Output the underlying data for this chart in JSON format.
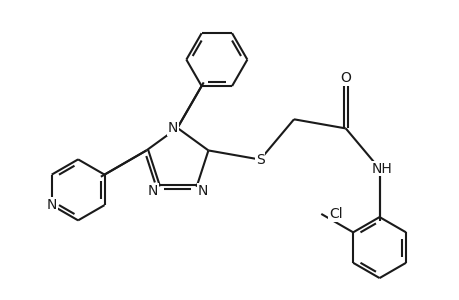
{
  "bg_color": "#ffffff",
  "line_color": "#1a1a1a",
  "line_width": 1.5,
  "font_size": 10,
  "figsize": [
    4.6,
    3.0
  ],
  "dpi": 100,
  "xlim": [
    -2.8,
    4.2
  ],
  "ylim": [
    -2.8,
    2.8
  ]
}
